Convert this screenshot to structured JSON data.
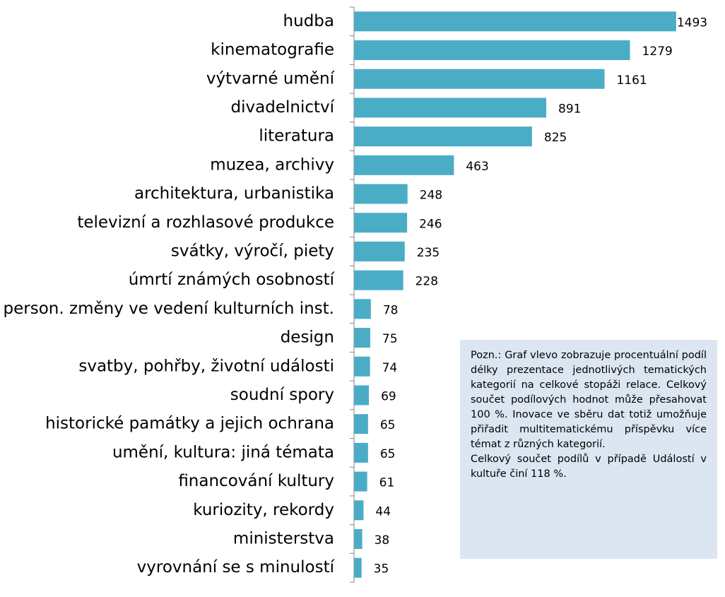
{
  "chart_data": {
    "type": "bar",
    "orientation": "horizontal",
    "categories": [
      "hudba",
      "kinematografie",
      "výtvarné umění",
      "divadelnictví",
      "literatura",
      "muzea, archivy",
      "architektura, urbanistika",
      "televizní a rozhlasové produkce",
      "svátky, výročí, piety",
      "úmrtí známých osobností",
      "person. změny ve vedení kulturních inst.",
      "design",
      "svatby, pohřby, životní události",
      "soudní spory",
      "historické památky a jejich ochrana",
      "umění, kultura: jiná témata",
      "financování kultury",
      "kuriozity, rekordy",
      "ministerstva",
      "vyrovnání se s minulostí"
    ],
    "values": [
      1493,
      1279,
      1161,
      891,
      825,
      463,
      248,
      246,
      235,
      228,
      78,
      75,
      74,
      69,
      65,
      65,
      61,
      44,
      38,
      35
    ],
    "color": "#4bacc6",
    "xlim": [
      0,
      1500
    ]
  },
  "note": {
    "paragraphs": [
      "Pozn.: Graf vlevo zobrazuje procentuální podíl délky prezentace jednotlivých tematických kategorií na celkové stopáži relace. Celkový součet podílových hodnot může přesahovat 100 %. Inovace ve sběru dat totiž umožňuje přiřadit multitematickému příspěvku více témat z různých kategorií.",
      "Celkový součet podílů v případě Událostí v kultuře činí 118 %."
    ]
  }
}
